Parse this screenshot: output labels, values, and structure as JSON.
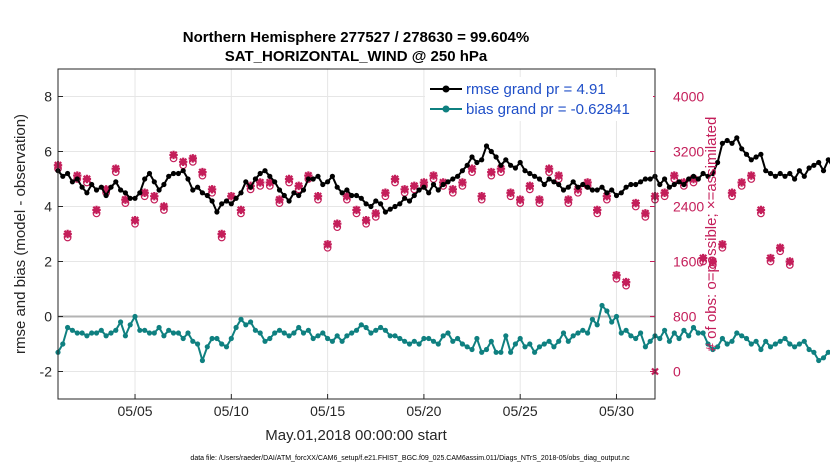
{
  "chart_data": {
    "type": "line",
    "title_line1": "Northern Hemisphere 277527 / 278630 = 99.604%",
    "title_line2": "SAT_HORIZONTAL_WIND @ 250 hPa",
    "xlabel": "May.01,2018 00:00:00 start",
    "ylabel": "rmse and bias (model - observation)",
    "ylabel_right": "# of obs: o=possible; ×=assimilated",
    "footer": "data file: /Users/raeder/DAI/ATM_forcXX/CAM6_setup/f.e21.FHIST_BGC.f09_025.CAM6assim.011/Diags_NTrS_2018-05/obs_diag_output.nc",
    "xlim": [
      1,
      32
    ],
    "ylim": [
      -3,
      9
    ],
    "ylim_right": [
      -400,
      4400
    ],
    "x_ticks": [
      5,
      10,
      15,
      20,
      25,
      30
    ],
    "x_tick_labels": [
      "05/05",
      "05/10",
      "05/15",
      "05/20",
      "05/25",
      "05/30"
    ],
    "y_ticks": [
      -2,
      0,
      2,
      4,
      6,
      8
    ],
    "y_tick_labels": [
      "-2",
      "0",
      "2",
      "4",
      "6",
      "8"
    ],
    "y_right_ticks": [
      0,
      800,
      1600,
      2400,
      3200,
      4000
    ],
    "y_right_tick_labels": [
      "0",
      "800",
      "1600",
      "2400",
      "3200",
      "4000"
    ],
    "zero_line": 0,
    "legend": [
      {
        "label": "rmse grand pr = 4.91",
        "color": "#000000"
      },
      {
        "label": "bias grand pr = -0.62841",
        "color": "#0f8080"
      }
    ],
    "series": [
      {
        "name": "rmse",
        "color": "#000000",
        "x_start": 1.0,
        "dx": 0.25,
        "values": [
          5.3,
          5.1,
          5.2,
          4.9,
          5.0,
          4.7,
          4.5,
          4.8,
          4.6,
          4.7,
          4.4,
          4.7,
          4.9,
          4.6,
          4.5,
          4.3,
          4.3,
          4.5,
          5.0,
          5.2,
          4.9,
          4.6,
          4.8,
          5.1,
          5.2,
          5.2,
          5.3,
          5.0,
          4.6,
          4.7,
          4.5,
          4.4,
          4.2,
          3.8,
          4.1,
          4.2,
          4.1,
          4.3,
          4.5,
          4.9,
          4.7,
          5.0,
          5.2,
          5.3,
          5.1,
          4.9,
          4.6,
          4.4,
          4.2,
          4.5,
          4.4,
          4.6,
          5.0,
          5.0,
          5.1,
          4.8,
          4.9,
          5.1,
          4.7,
          4.5,
          4.6,
          4.4,
          4.4,
          4.3,
          4.1,
          4.0,
          4.2,
          4.1,
          3.8,
          3.9,
          4.0,
          4.1,
          4.3,
          4.2,
          4.4,
          4.6,
          4.7,
          4.5,
          4.8,
          4.6,
          4.8,
          4.9,
          5.0,
          5.1,
          5.3,
          5.5,
          5.8,
          5.6,
          5.7,
          6.2,
          6.0,
          5.8,
          5.5,
          5.7,
          5.5,
          5.4,
          5.6,
          5.3,
          5.2,
          5.1,
          5.0,
          4.8,
          5.0,
          4.9,
          4.8,
          4.6,
          4.7,
          4.9,
          4.7,
          4.8,
          4.7,
          4.6,
          4.6,
          4.7,
          4.5,
          4.6,
          4.4,
          4.5,
          4.7,
          4.8,
          4.8,
          4.9,
          5.0,
          5.0,
          5.1,
          4.8,
          5.0,
          4.7,
          4.8,
          4.9,
          4.8,
          5.0,
          5.1,
          5.0,
          5.2,
          5.1,
          5.2,
          5.6,
          6.3,
          6.4,
          6.3,
          6.5,
          6.1,
          5.9,
          5.7,
          5.8,
          5.9,
          5.3,
          5.2,
          5.1,
          5.2,
          5.1,
          5.2,
          5.0,
          5.3,
          5.1,
          5.4,
          5.5,
          5.6,
          5.3,
          5.7,
          5.4,
          5.0,
          4.9,
          5.1,
          5.0,
          5.4,
          5.0,
          5.6,
          5.1,
          5.3,
          5.0,
          4.8,
          5.2,
          5.1,
          4.6,
          4.0,
          4.4,
          3.9,
          4.7,
          4.5,
          4.9,
          5.0,
          4.9,
          5.0,
          4.8,
          4.7,
          4.8,
          4.9,
          4.9,
          4.8,
          4.8,
          4.5,
          4.6,
          4.7,
          4.9,
          4.9,
          5.0,
          4.9,
          4.8
        ]
      },
      {
        "name": "bias",
        "color": "#0f8080",
        "x_start": 1.0,
        "dx": 0.25,
        "values": [
          -1.3,
          -1.0,
          -0.4,
          -0.5,
          -0.6,
          -0.6,
          -0.7,
          -0.6,
          -0.6,
          -0.5,
          -0.7,
          -0.6,
          -0.5,
          -0.2,
          -0.7,
          -0.3,
          0.0,
          -0.5,
          -0.5,
          -0.6,
          -0.6,
          -0.4,
          -0.7,
          -0.5,
          -0.6,
          -0.6,
          -0.8,
          -0.6,
          -0.9,
          -1.0,
          -1.6,
          -1.1,
          -0.8,
          -0.8,
          -1.0,
          -1.1,
          -0.8,
          -0.4,
          -0.1,
          -0.3,
          -0.2,
          -0.5,
          -0.6,
          -0.9,
          -0.8,
          -0.6,
          -0.5,
          -0.6,
          -0.7,
          -0.6,
          -0.4,
          -0.6,
          -0.5,
          -0.8,
          -0.7,
          -0.6,
          -0.8,
          -0.9,
          -0.7,
          -0.9,
          -0.7,
          -0.6,
          -0.5,
          -0.3,
          -0.4,
          -0.6,
          -0.5,
          -0.4,
          -0.5,
          -0.7,
          -0.7,
          -0.8,
          -0.9,
          -1.0,
          -0.9,
          -1.0,
          -0.8,
          -0.8,
          -0.9,
          -1.0,
          -0.7,
          -0.6,
          -0.9,
          -0.8,
          -1.0,
          -1.1,
          -1.2,
          -0.8,
          -1.3,
          -1.2,
          -0.9,
          -1.3,
          -1.3,
          -0.7,
          -1.3,
          -1.0,
          -0.8,
          -1.1,
          -1.0,
          -1.3,
          -1.1,
          -1.0,
          -0.9,
          -1.1,
          -0.9,
          -0.6,
          -0.9,
          -0.7,
          -0.6,
          -0.5,
          -0.6,
          -0.1,
          -0.3,
          0.4,
          0.2,
          -0.2,
          0.0,
          -0.6,
          -0.5,
          -0.7,
          -0.8,
          -0.6,
          -1.1,
          -0.9,
          -0.7,
          -0.8,
          -0.5,
          -0.9,
          -0.6,
          -0.8,
          -0.5,
          -0.7,
          -0.4,
          -0.6,
          -0.6,
          -1.0,
          -1.2,
          -1.1,
          -0.8,
          -1.0,
          -0.9,
          -0.6,
          -0.7,
          -0.8,
          -1.0,
          -0.9,
          -1.2,
          -0.9,
          -1.1,
          -1.0,
          -0.9,
          -0.8,
          -1.0,
          -1.1,
          -1.0,
          -0.9,
          -1.2,
          -1.3,
          -1.6,
          -1.5,
          -1.3,
          -1.2,
          -1.5,
          -1.4,
          -1.1,
          -1.2,
          -1.0,
          -0.9,
          -1.1,
          -1.0,
          -0.9,
          -0.2,
          -0.2,
          -0.9,
          -0.9,
          -0.9,
          -0.8,
          -0.9,
          -0.8,
          -0.7,
          -0.9,
          -1.0,
          -1.0,
          -0.7,
          -0.9,
          -0.8,
          -1.1,
          -0.7,
          -0.6,
          -0.5,
          -0.6,
          -1.0,
          -0.9,
          -0.7,
          -0.6,
          -0.5,
          -0.7,
          -0.6
        ]
      },
      {
        "name": "possible",
        "color": "#c41e5a",
        "marker": "o",
        "axis": "right",
        "x_start": 1.0,
        "dx": 0.5,
        "values": [
          2950,
          1950,
          2800,
          2750,
          2300,
          2600,
          2900,
          2450,
          2150,
          2550,
          2500,
          2350,
          3100,
          3000,
          3050,
          2850,
          2600,
          1950,
          2500,
          2300,
          2650,
          2700,
          2700,
          2450,
          2750,
          2650,
          2800,
          2500,
          1800,
          2100,
          2500,
          2300,
          2150,
          2250,
          2550,
          2750,
          2600,
          2650,
          2700,
          2800,
          2700,
          2600,
          2700,
          2900,
          2500,
          2850,
          2900,
          2550,
          2450,
          2650,
          2450,
          2900,
          2800,
          2450,
          2600,
          2700,
          2300,
          2500,
          1350,
          1250,
          2400,
          2250,
          2500,
          2550,
          2800,
          2700,
          2750,
          1600,
          1550,
          1800,
          2550,
          2700,
          2800,
          2300,
          1600,
          1750,
          1550
        ]
      },
      {
        "name": "assimilated",
        "color": "#c41e5a",
        "marker": "x",
        "axis": "right",
        "x_start": 1.0,
        "dx": 0.5,
        "values": [
          3000,
          2000,
          2850,
          2800,
          2350,
          2650,
          2950,
          2500,
          2200,
          2600,
          2550,
          2400,
          3150,
          3050,
          3100,
          2900,
          2650,
          2000,
          2550,
          2350,
          2700,
          2750,
          2750,
          2500,
          2800,
          2700,
          2850,
          2550,
          1850,
          2150,
          2550,
          2350,
          2200,
          2300,
          2600,
          2800,
          2650,
          2700,
          2750,
          2850,
          2750,
          2650,
          2750,
          2950,
          2550,
          2900,
          2950,
          2600,
          2500,
          2700,
          2500,
          2950,
          2850,
          2500,
          2650,
          2750,
          2350,
          2550,
          1400,
          1300,
          2450,
          2300,
          2550,
          2600,
          2850,
          2750,
          2800,
          1650,
          1600,
          1850,
          2600,
          2750,
          2850,
          2350,
          1650,
          1800,
          1600
        ]
      }
    ]
  }
}
